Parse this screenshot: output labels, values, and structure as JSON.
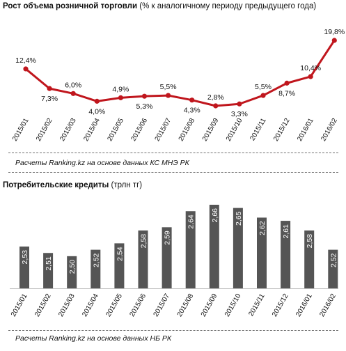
{
  "chart1": {
    "title_bold": "Рост объема розничной торговли",
    "title_rest": " (% к аналогичному периоду предыдущего года)",
    "source": "Расчеты Ranking.kz на основе данных КС МНЭ РК",
    "color": "#c0161d"
  },
  "chart2": {
    "title_bold": "Потребительские  кредиты",
    "title_rest": " (трлн тг)",
    "source": "Расчеты Ranking.kz на основе данных  НБ РК",
    "color": "#555555"
  },
  "chart_data": [
    {
      "type": "line",
      "title": "Рост объема розничной торговли (% к аналогичному периоду предыдущего года)",
      "categories": [
        "2015/01",
        "2015/02",
        "2015/03",
        "2015/04",
        "2015/05",
        "2015/06",
        "2015/07",
        "2015/08",
        "2015/09",
        "2015/10",
        "2015/11",
        "2015/12",
        "2016/01",
        "2016/02"
      ],
      "values": [
        12.4,
        7.3,
        6.0,
        4.0,
        4.9,
        5.3,
        5.5,
        4.3,
        2.8,
        3.3,
        5.5,
        8.7,
        10.4,
        19.8
      ],
      "labels": [
        "12,4%",
        "7,3%",
        "6,0%",
        "4,0%",
        "4,9%",
        "5,3%",
        "5,5%",
        "4,3%",
        "2,8%",
        "3,3%",
        "5,5%",
        "8,7%",
        "10,4%",
        "19,8%"
      ],
      "grid": false,
      "legend": "none"
    },
    {
      "type": "bar",
      "title": "Потребительские кредиты (трлн тг)",
      "categories": [
        "2015/01",
        "2015/02",
        "2015/03",
        "2015/04",
        "2015/05",
        "2015/06",
        "2015/07",
        "2015/08",
        "2015/09",
        "2015/10",
        "2015/11",
        "2015/12",
        "2016/01",
        "2016/02"
      ],
      "values": [
        2.53,
        2.51,
        2.5,
        2.52,
        2.54,
        2.58,
        2.59,
        2.64,
        2.66,
        2.65,
        2.62,
        2.61,
        2.58,
        2.52
      ],
      "labels": [
        "2,53",
        "2,51",
        "2,50",
        "2,52",
        "2,54",
        "2,58",
        "2,59",
        "2,64",
        "2,66",
        "2,65",
        "2,62",
        "2,61",
        "2,58",
        "2,52"
      ],
      "ylim": [
        2.4,
        2.67
      ],
      "grid": false,
      "legend": "none"
    }
  ]
}
